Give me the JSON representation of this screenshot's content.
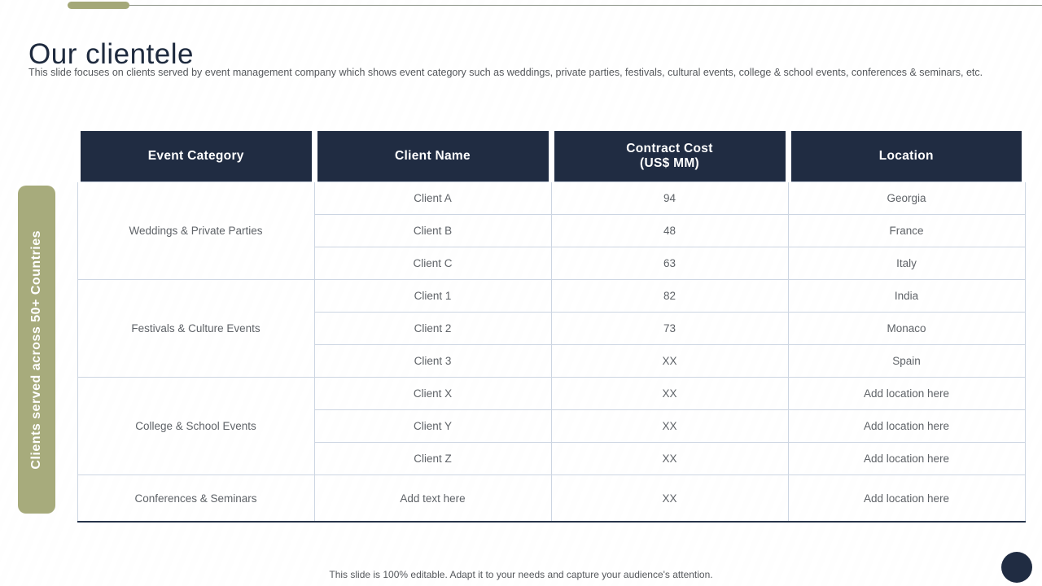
{
  "slide": {
    "title": "Our clientele",
    "subtitle": "This slide focuses on clients served by event management company which shows event category such as weddings, private parties, festivals, cultural events, college & school events, conferences & seminars, etc.",
    "footer": "This slide is 100% editable. Adapt it to your needs and capture your audience's attention.",
    "side_banner": "Clients served across 50+ Countries"
  },
  "colors": {
    "header_navy": "#202c42",
    "olive_accent": "#a7ab7c",
    "row_border": "#ccd5e2",
    "body_text": "#5f6368",
    "title_text": "#1e2a3e"
  },
  "table": {
    "headers": [
      "Event Category",
      "Client Name",
      "Contract Cost\n(US$ MM)",
      "Location"
    ],
    "groups": [
      {
        "category": "Weddings & Private Parties",
        "rows": [
          {
            "client": "Client A",
            "cost": "94",
            "location": "Georgia"
          },
          {
            "client": "Client B",
            "cost": "48",
            "location": "France"
          },
          {
            "client": "Client C",
            "cost": "63",
            "location": "Italy"
          }
        ]
      },
      {
        "category": "Festivals & Culture Events",
        "rows": [
          {
            "client": "Client 1",
            "cost": "82",
            "location": "India"
          },
          {
            "client": "Client 2",
            "cost": "73",
            "location": "Monaco"
          },
          {
            "client": "Client 3",
            "cost": "XX",
            "location": "Spain"
          }
        ]
      },
      {
        "category": "College & School Events",
        "rows": [
          {
            "client": "Client X",
            "cost": "XX",
            "location": "Add location here"
          },
          {
            "client": "Client Y",
            "cost": "XX",
            "location": "Add location here"
          },
          {
            "client": "Client Z",
            "cost": "XX",
            "location": "Add location here"
          }
        ]
      },
      {
        "category": "Conferences & Seminars",
        "rows": [
          {
            "client": "Add text here",
            "cost": "XX",
            "location": "Add location here"
          }
        ]
      }
    ]
  }
}
